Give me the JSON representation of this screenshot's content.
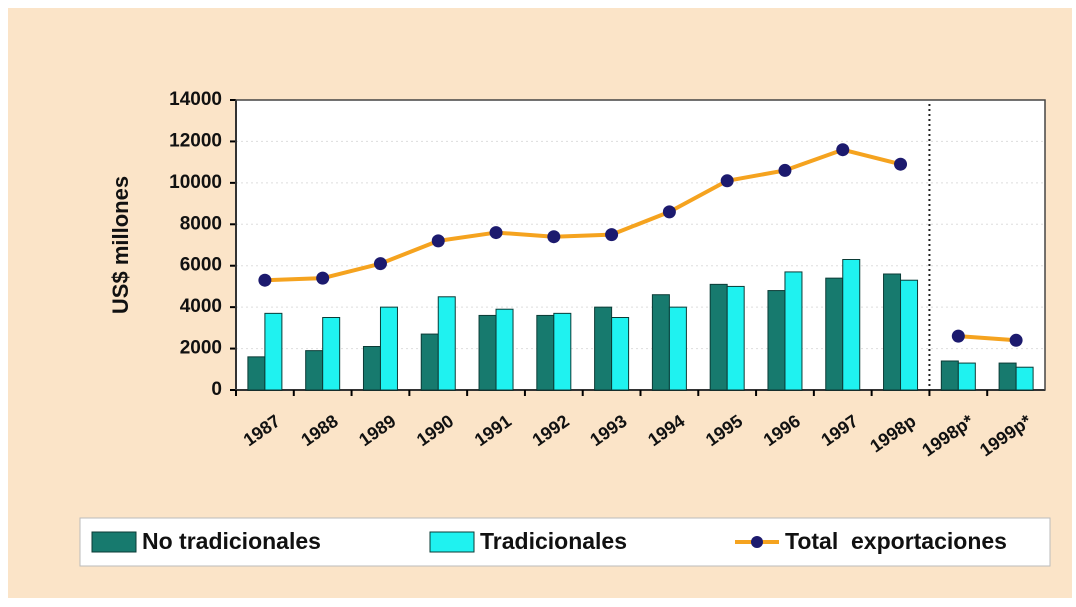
{
  "chart_data": {
    "type": "bar_line",
    "y_label": "US$ millones",
    "categories": [
      "1987",
      "1988",
      "1989",
      "1990",
      "1991",
      "1992",
      "1993",
      "1994",
      "1995",
      "1996",
      "1997",
      "1998p",
      "1998p*",
      "1999p*"
    ],
    "series": [
      {
        "name": "No tradicionales",
        "type": "bar",
        "color": "#177a6e",
        "values": [
          1600,
          1900,
          2100,
          2700,
          3600,
          3600,
          4000,
          4600,
          5100,
          4800,
          5400,
          5600,
          1400,
          1300
        ]
      },
      {
        "name": "Tradicionales",
        "type": "bar",
        "color": "#1ff2f0",
        "values": [
          3700,
          3500,
          4000,
          4500,
          3900,
          3700,
          3500,
          4000,
          5000,
          5700,
          6300,
          5300,
          1300,
          1100
        ]
      },
      {
        "name": "Total  exportaciones",
        "type": "line",
        "color": "#f5a31f",
        "marker_color": "#1c1a6e",
        "values": [
          5300,
          5400,
          6100,
          7200,
          7600,
          7400,
          7500,
          8600,
          10100,
          10600,
          11600,
          10900,
          2600,
          2400
        ]
      }
    ],
    "divider_after": 11,
    "ylim": [
      0,
      14000
    ],
    "yticks": [
      0,
      2000,
      4000,
      6000,
      8000,
      10000,
      12000,
      14000
    ],
    "grid": true
  }
}
